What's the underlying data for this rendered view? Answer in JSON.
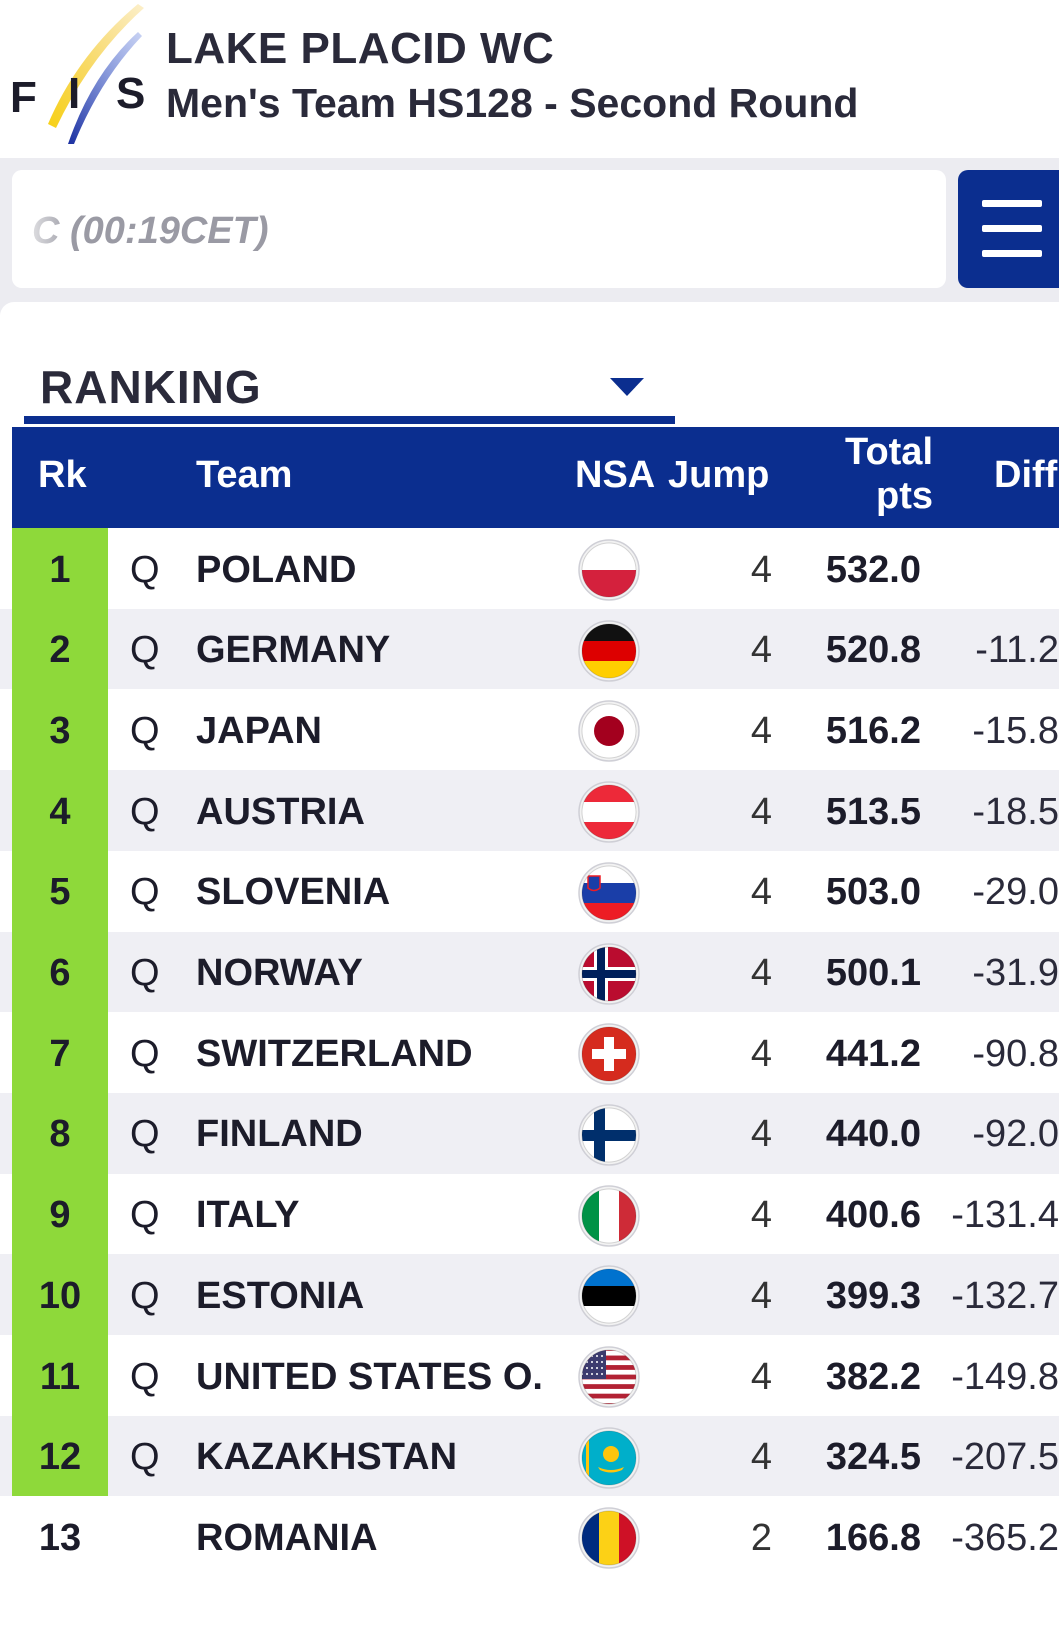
{
  "header": {
    "logo_text": "FIS",
    "event_title": "LAKE PLACID WC",
    "event_subtitle": "Men's Team HS128 - Second Round"
  },
  "status": {
    "text": "C (00:19CET)"
  },
  "menu": {
    "icon": "hamburger-menu-icon"
  },
  "ranking_select": {
    "label": "RANKING",
    "icon": "dropdown-caret-icon"
  },
  "table": {
    "headers": {
      "rank": "Rk",
      "team": "Team",
      "nsa": "NSA",
      "jump": "Jump",
      "total_line1": "Total",
      "total_line2": "pts",
      "diff": "Diff"
    },
    "rows": [
      {
        "rank": "1",
        "q": "Q",
        "team": "POLAND",
        "flag": "poland-flag-icon",
        "jump": "4",
        "total": "532.0",
        "diff": ""
      },
      {
        "rank": "2",
        "q": "Q",
        "team": "GERMANY",
        "flag": "germany-flag-icon",
        "jump": "4",
        "total": "520.8",
        "diff": "-11.2"
      },
      {
        "rank": "3",
        "q": "Q",
        "team": "JAPAN",
        "flag": "japan-flag-icon",
        "jump": "4",
        "total": "516.2",
        "diff": "-15.8"
      },
      {
        "rank": "4",
        "q": "Q",
        "team": "AUSTRIA",
        "flag": "austria-flag-icon",
        "jump": "4",
        "total": "513.5",
        "diff": "-18.5"
      },
      {
        "rank": "5",
        "q": "Q",
        "team": "SLOVENIA",
        "flag": "slovenia-flag-icon",
        "jump": "4",
        "total": "503.0",
        "diff": "-29.0"
      },
      {
        "rank": "6",
        "q": "Q",
        "team": "NORWAY",
        "flag": "norway-flag-icon",
        "jump": "4",
        "total": "500.1",
        "diff": "-31.9"
      },
      {
        "rank": "7",
        "q": "Q",
        "team": "SWITZERLAND",
        "flag": "switzerland-flag-icon",
        "jump": "4",
        "total": "441.2",
        "diff": "-90.8"
      },
      {
        "rank": "8",
        "q": "Q",
        "team": "FINLAND",
        "flag": "finland-flag-icon",
        "jump": "4",
        "total": "440.0",
        "diff": "-92.0"
      },
      {
        "rank": "9",
        "q": "Q",
        "team": "ITALY",
        "flag": "italy-flag-icon",
        "jump": "4",
        "total": "400.6",
        "diff": "-131.4"
      },
      {
        "rank": "10",
        "q": "Q",
        "team": "ESTONIA",
        "flag": "estonia-flag-icon",
        "jump": "4",
        "total": "399.3",
        "diff": "-132.7"
      },
      {
        "rank": "11",
        "q": "Q",
        "team": "UNITED STATES O...",
        "flag": "usa-flag-icon",
        "jump": "4",
        "total": "382.2",
        "diff": "-149.8"
      },
      {
        "rank": "12",
        "q": "Q",
        "team": "KAZAKHSTAN",
        "flag": "kazakhstan-flag-icon",
        "jump": "4",
        "total": "324.5",
        "diff": "-207.5"
      },
      {
        "rank": "13",
        "q": "",
        "team": "ROMANIA",
        "flag": "romania-flag-icon",
        "jump": "2",
        "total": "166.8",
        "diff": "-365.2"
      }
    ]
  },
  "colors": {
    "brand_blue": "#0b2e8f",
    "qualified_green": "#8ed93a",
    "row_alt": "#efeff4"
  }
}
